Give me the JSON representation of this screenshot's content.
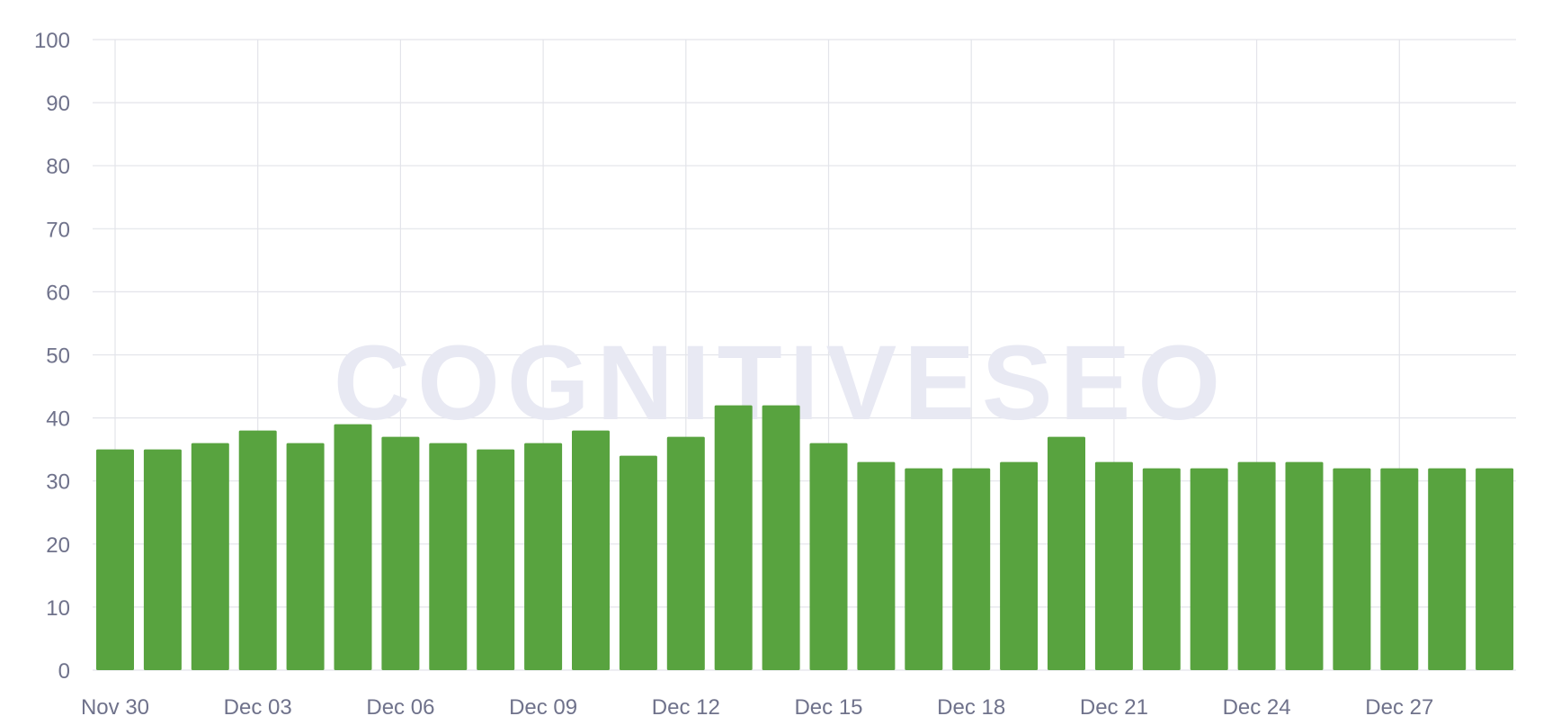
{
  "chart_data": {
    "type": "bar",
    "title": "",
    "xlabel": "",
    "ylabel": "",
    "ylim": [
      0,
      100
    ],
    "y_ticks": [
      0,
      10,
      20,
      30,
      40,
      50,
      60,
      70,
      80,
      90,
      100
    ],
    "grid": true,
    "legend": "none",
    "watermark": "COGNITIVESEO",
    "colors": {
      "bar": "#58a33f",
      "grid": "#e3e4ea",
      "tick_text": "#6f728b",
      "watermark": "#e8e9f3"
    },
    "categories": [
      "Nov 30",
      "Dec 01",
      "Dec 02",
      "Dec 03",
      "Dec 04",
      "Dec 05",
      "Dec 06",
      "Dec 07",
      "Dec 08",
      "Dec 09",
      "Dec 10",
      "Dec 11",
      "Dec 12",
      "Dec 13",
      "Dec 14",
      "Dec 15",
      "Dec 16",
      "Dec 17",
      "Dec 18",
      "Dec 19",
      "Dec 20",
      "Dec 21",
      "Dec 22",
      "Dec 23",
      "Dec 24",
      "Dec 25",
      "Dec 26",
      "Dec 27",
      "Dec 28",
      "Dec 29"
    ],
    "x_tick_labels": [
      "Nov 30",
      "Dec 03",
      "Dec 06",
      "Dec 09",
      "Dec 12",
      "Dec 15",
      "Dec 18",
      "Dec 21",
      "Dec 24",
      "Dec 27"
    ],
    "values": [
      35,
      35,
      36,
      38,
      36,
      39,
      37,
      36,
      35,
      36,
      38,
      34,
      37,
      42,
      42,
      36,
      33,
      32,
      32,
      33,
      37,
      33,
      32,
      32,
      33,
      33,
      32,
      32,
      32,
      32
    ]
  }
}
